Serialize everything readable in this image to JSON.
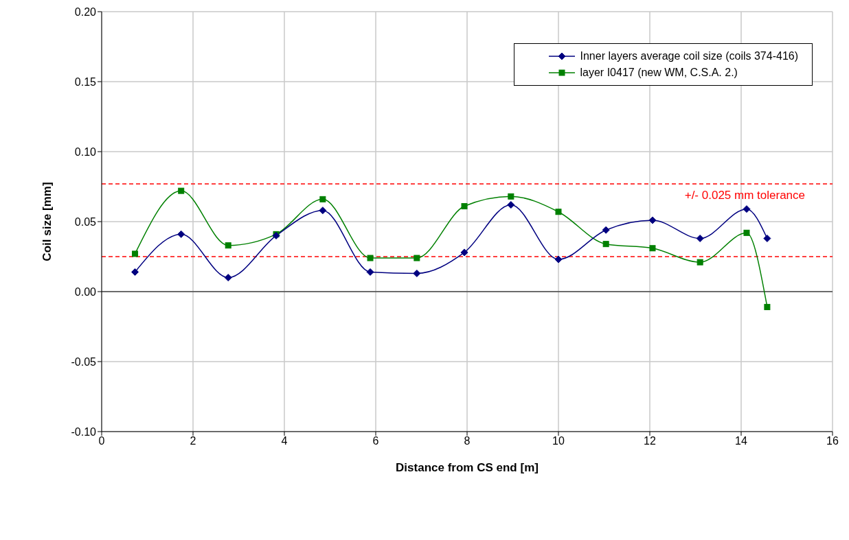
{
  "chart_data": {
    "type": "line",
    "xlabel": "Distance from CS end [m]",
    "ylabel": "Coil size [mm]",
    "x": [
      0.73,
      1.74,
      2.77,
      3.82,
      4.84,
      5.88,
      6.9,
      7.94,
      8.96,
      10.0,
      11.04,
      12.06,
      13.1,
      14.12,
      14.57
    ],
    "series": [
      {
        "name": "Inner layers average coil size (coils 374-416)",
        "color": "#000080",
        "marker": "diamond",
        "values": [
          0.014,
          0.041,
          0.01,
          0.04,
          0.058,
          0.014,
          0.013,
          0.028,
          0.062,
          0.023,
          0.044,
          0.051,
          0.038,
          0.059,
          0.038
        ]
      },
      {
        "name": "layer I0417 (new WM, C.S.A. 2.)",
        "color": "#008000",
        "marker": "square",
        "values": [
          0.027,
          0.072,
          0.033,
          0.041,
          0.066,
          0.024,
          0.024,
          0.061,
          0.068,
          0.057,
          0.034,
          0.031,
          0.021,
          0.042,
          -0.011
        ]
      }
    ],
    "xlim": [
      0,
      16
    ],
    "xticks": [
      0,
      2,
      4,
      6,
      8,
      10,
      12,
      14,
      16
    ],
    "ylim": [
      -0.1,
      0.2
    ],
    "yticks": [
      {
        "value": -0.1,
        "label": "-0.10"
      },
      {
        "value": -0.05,
        "label": "-0.05"
      },
      {
        "value": 0,
        "label": "0.00"
      },
      {
        "value": 0.05,
        "label": "0.05"
      },
      {
        "value": 0.1,
        "label": "0.10"
      },
      {
        "value": 0.15,
        "label": "0.15"
      },
      {
        "value": 0.2,
        "label": "0.20"
      }
    ],
    "ref_lines": [
      {
        "axis": "y",
        "value": 0.077,
        "label": "+/- 0.025 mm tolerance",
        "color": "#ff0000",
        "line_style": "dashed"
      },
      {
        "axis": "y",
        "value": 0.025,
        "color": "#ff0000",
        "line_style": "dashed"
      }
    ],
    "grid": true,
    "legend": "top right",
    "line_style": "solid"
  }
}
